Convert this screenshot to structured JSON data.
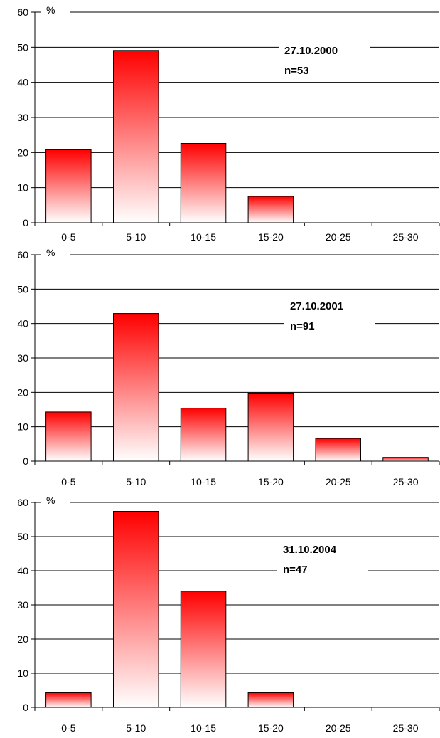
{
  "chart_data": [
    {
      "type": "bar",
      "categories": [
        "0-5",
        "5-10",
        "10-15",
        "15-20",
        "20-25",
        "25-30"
      ],
      "values": [
        20.8,
        49.1,
        22.6,
        7.5,
        0,
        0
      ],
      "ylabel": "%",
      "ylim": [
        0,
        60
      ],
      "yticks": [
        "0",
        "10",
        "20",
        "30",
        "40",
        "50",
        "60"
      ],
      "grid": true,
      "annotation": [
        "27.10.2000",
        "n=53"
      ],
      "bar_color": "#ff0000"
    },
    {
      "type": "bar",
      "categories": [
        "0-5",
        "5-10",
        "10-15",
        "15-20",
        "20-25",
        "25-30"
      ],
      "values": [
        14.3,
        42.9,
        15.4,
        19.8,
        6.6,
        1.1
      ],
      "ylabel": "%",
      "ylim": [
        0,
        60
      ],
      "yticks": [
        "0",
        "10",
        "20",
        "30",
        "40",
        "50",
        "60"
      ],
      "grid": true,
      "annotation": [
        "27.10.2001",
        "n=91"
      ],
      "bar_color": "#ff0000"
    },
    {
      "type": "bar",
      "categories": [
        "0-5",
        "5-10",
        "10-15",
        "15-20",
        "20-25",
        "25-30"
      ],
      "values": [
        4.3,
        57.4,
        34.0,
        4.3,
        0,
        0
      ],
      "ylabel": "%",
      "ylim": [
        0,
        60
      ],
      "yticks": [
        "0",
        "10",
        "20",
        "30",
        "40",
        "50",
        "60"
      ],
      "grid": true,
      "annotation": [
        "31.10.2004",
        "n=47"
      ],
      "bar_color": "#ff0000"
    }
  ]
}
